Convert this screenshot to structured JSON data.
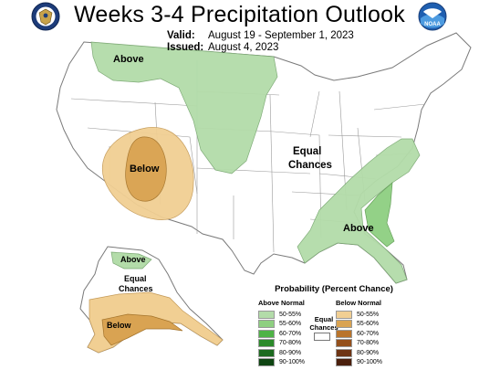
{
  "header": {
    "title": "Weeks 3-4 Precipitation Outlook",
    "valid_label": "Valid:",
    "valid_value": "August 19 - September 1, 2023",
    "issued_label": "Issued:",
    "issued_value": "August 4, 2023"
  },
  "logos": {
    "left": "doc-seal-icon",
    "right": "noaa-logo-icon",
    "right_text": "NOAA"
  },
  "map": {
    "labels": {
      "north_above": "Above",
      "sw_below": "Below",
      "equal_chances_1": "Equal",
      "equal_chances_2": "Chances",
      "se_above": "Above",
      "ak_above": "Above",
      "ak_equal_1": "Equal",
      "ak_equal_2": "Chances",
      "ak_below": "Below"
    },
    "colors": {
      "above_50_55": "#b3dca9",
      "above_55_60": "#8ecf81",
      "below_50_55": "#f1cf93",
      "below_55_60": "#d9a352",
      "land": "#ffffff",
      "outline": "#7a7a7a"
    }
  },
  "legend": {
    "title": "Probability (Percent Chance)",
    "above_header": "Above Normal",
    "below_header": "Below Normal",
    "equal_1": "Equal",
    "equal_2": "Chances",
    "above_items": [
      {
        "label": "50-55%",
        "color": "#b3dca9"
      },
      {
        "label": "55-60%",
        "color": "#8ecf81"
      },
      {
        "label": "60-70%",
        "color": "#4fb346"
      },
      {
        "label": "70-80%",
        "color": "#2b8a2a"
      },
      {
        "label": "80-90%",
        "color": "#1c6a1f"
      },
      {
        "label": "90-100%",
        "color": "#0e4512"
      }
    ],
    "below_items": [
      {
        "label": "50-55%",
        "color": "#f1cf93"
      },
      {
        "label": "55-60%",
        "color": "#d9a352"
      },
      {
        "label": "60-70%",
        "color": "#b9742c"
      },
      {
        "label": "70-80%",
        "color": "#94501c"
      },
      {
        "label": "80-90%",
        "color": "#6e3414"
      },
      {
        "label": "90-100%",
        "color": "#4b1f0c"
      }
    ]
  }
}
